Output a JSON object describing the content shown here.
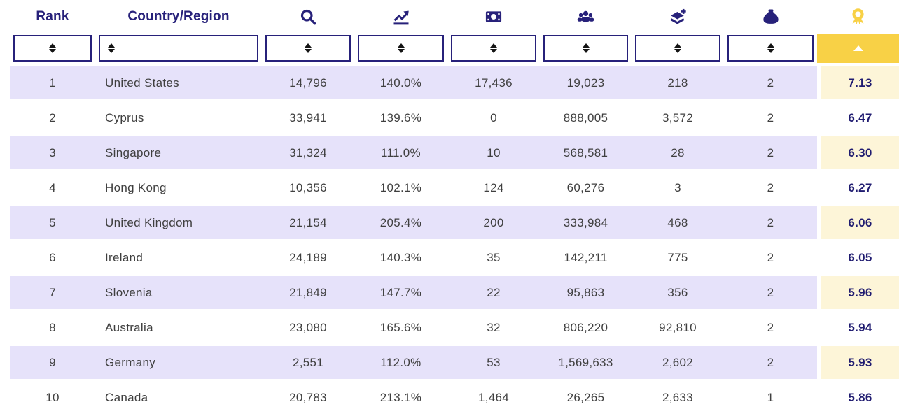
{
  "header": {
    "rank_label": "Rank",
    "country_label": "Country/Region",
    "icon_columns": [
      "search-icon",
      "trend-chart-icon",
      "banknote-icon",
      "people-icon",
      "add-layers-icon",
      "money-bag-icon",
      "medal-icon"
    ]
  },
  "filter_row": {
    "inactive_sort_icon": "up-down-triangles",
    "active_sort_icon": "up-triangle",
    "active_column": "score"
  },
  "rows": [
    {
      "rank": "1",
      "country": "United States",
      "values": [
        "14,796",
        "140.0%",
        "17,436",
        "19,023",
        "218",
        "2"
      ],
      "score": "7.13"
    },
    {
      "rank": "2",
      "country": "Cyprus",
      "values": [
        "33,941",
        "139.6%",
        "0",
        "888,005",
        "3,572",
        "2"
      ],
      "score": "6.47"
    },
    {
      "rank": "3",
      "country": "Singapore",
      "values": [
        "31,324",
        "111.0%",
        "10",
        "568,581",
        "28",
        "2"
      ],
      "score": "6.30"
    },
    {
      "rank": "4",
      "country": "Hong Kong",
      "values": [
        "10,356",
        "102.1%",
        "124",
        "60,276",
        "3",
        "2"
      ],
      "score": "6.27"
    },
    {
      "rank": "5",
      "country": "United Kingdom",
      "values": [
        "21,154",
        "205.4%",
        "200",
        "333,984",
        "468",
        "2"
      ],
      "score": "6.06"
    },
    {
      "rank": "6",
      "country": "Ireland",
      "values": [
        "24,189",
        "140.3%",
        "35",
        "142,211",
        "775",
        "2"
      ],
      "score": "6.05"
    },
    {
      "rank": "7",
      "country": "Slovenia",
      "values": [
        "21,849",
        "147.7%",
        "22",
        "95,863",
        "356",
        "2"
      ],
      "score": "5.96"
    },
    {
      "rank": "8",
      "country": "Australia",
      "values": [
        "23,080",
        "165.6%",
        "32",
        "806,220",
        "92,810",
        "2"
      ],
      "score": "5.94"
    },
    {
      "rank": "9",
      "country": "Germany",
      "values": [
        "2,551",
        "112.0%",
        "53",
        "1,569,633",
        "2,602",
        "2"
      ],
      "score": "5.93"
    },
    {
      "rank": "10",
      "country": "Canada",
      "values": [
        "20,783",
        "213.1%",
        "1,464",
        "26,265",
        "2,633",
        "1"
      ],
      "score": "5.86"
    }
  ],
  "colors": {
    "navy": "#27217a",
    "sort_active_yellow": "#f8d146",
    "score_cell_yellow": "#fdf5d8",
    "row_stripe_lavender": "#e6e2fa",
    "data_text": "#3f3f3f",
    "score_text": "#1f1b70"
  }
}
